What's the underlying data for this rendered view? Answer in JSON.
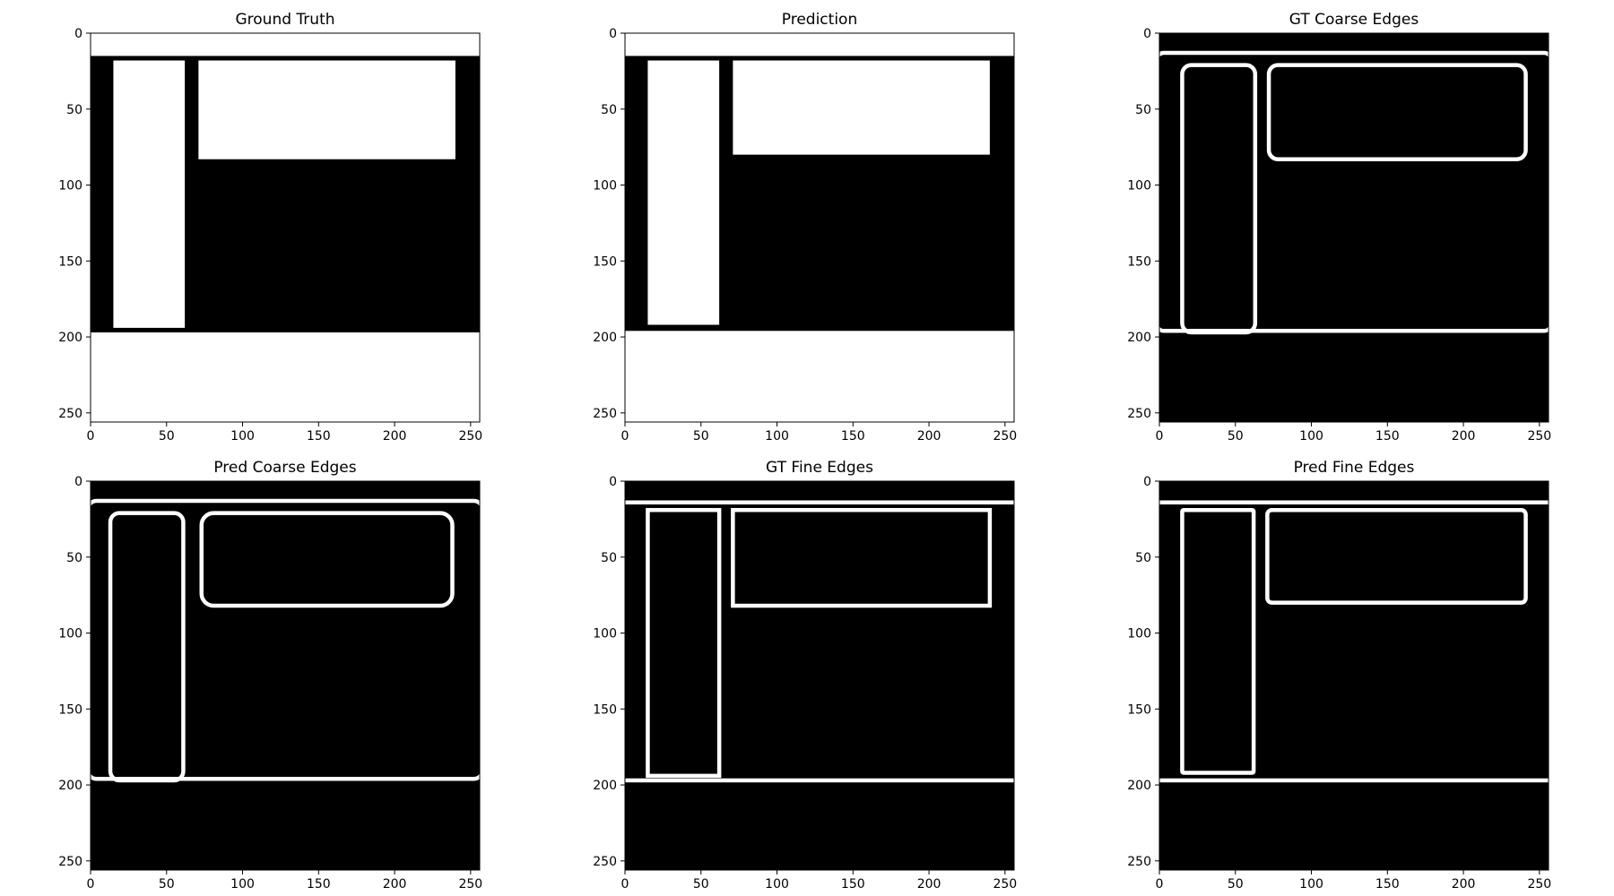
{
  "figure": {
    "background": "#ffffff",
    "image_foreground": "#ffffff",
    "image_background": "#000000"
  },
  "chart_data": [
    {
      "type": "heatmap",
      "title": "Ground Truth",
      "xlim": [
        0,
        256
      ],
      "ylim": [
        256,
        0
      ],
      "xticks": [
        0,
        50,
        100,
        150,
        200,
        250
      ],
      "yticks": [
        0,
        50,
        100,
        150,
        200,
        250
      ],
      "image": {
        "background": "#000000",
        "filled_regions": [
          {
            "x": [
              0,
              256
            ],
            "y": [
              0,
              15
            ]
          },
          {
            "x": [
              15,
              62
            ],
            "y": [
              18,
              194
            ]
          },
          {
            "x": [
              71,
              240
            ],
            "y": [
              18,
              83
            ]
          },
          {
            "x": [
              0,
              256
            ],
            "y": [
              197,
              256
            ]
          }
        ],
        "stroked_regions": []
      }
    },
    {
      "type": "heatmap",
      "title": "Prediction",
      "xlim": [
        0,
        256
      ],
      "ylim": [
        256,
        0
      ],
      "xticks": [
        0,
        50,
        100,
        150,
        200,
        250
      ],
      "yticks": [
        0,
        50,
        100,
        150,
        200,
        250
      ],
      "image": {
        "background": "#000000",
        "filled_regions": [
          {
            "x": [
              0,
              256
            ],
            "y": [
              0,
              15
            ]
          },
          {
            "x": [
              15,
              62
            ],
            "y": [
              18,
              192
            ]
          },
          {
            "x": [
              71,
              240
            ],
            "y": [
              18,
              80
            ]
          },
          {
            "x": [
              0,
              256
            ],
            "y": [
              196,
              256
            ]
          }
        ],
        "stroked_regions": []
      }
    },
    {
      "type": "heatmap",
      "title": "GT Coarse Edges",
      "xlim": [
        0,
        256
      ],
      "ylim": [
        256,
        0
      ],
      "xticks": [
        0,
        50,
        100,
        150,
        200,
        250
      ],
      "yticks": [
        0,
        50,
        100,
        150,
        200,
        250
      ],
      "image": {
        "background": "#000000",
        "filled_regions": [],
        "stroked_regions": [
          {
            "x": [
              15,
              63
            ],
            "y": [
              21,
              197
            ],
            "rx": 6
          },
          {
            "x": [
              72,
              241
            ],
            "y": [
              21,
              83
            ],
            "rx": 6
          },
          {
            "x": [
              -2,
              258
            ],
            "y": [
              13,
              196
            ],
            "rx": 5
          }
        ]
      }
    },
    {
      "type": "heatmap",
      "title": "Pred Coarse Edges",
      "xlim": [
        0,
        256
      ],
      "ylim": [
        256,
        0
      ],
      "xticks": [
        0,
        50,
        100,
        150,
        200,
        250
      ],
      "yticks": [
        0,
        50,
        100,
        150,
        200,
        250
      ],
      "image": {
        "background": "#000000",
        "filled_regions": [],
        "stroked_regions": [
          {
            "x": [
              13,
              61
            ],
            "y": [
              21,
              197
            ],
            "rx": 6
          },
          {
            "x": [
              73,
              238
            ],
            "y": [
              21,
              82
            ],
            "rx": 8
          },
          {
            "x": [
              -2,
              258
            ],
            "y": [
              13,
              196
            ],
            "rx": 6
          }
        ]
      }
    },
    {
      "type": "heatmap",
      "title": "GT Fine Edges",
      "xlim": [
        0,
        256
      ],
      "ylim": [
        256,
        0
      ],
      "xticks": [
        0,
        50,
        100,
        150,
        200,
        250
      ],
      "yticks": [
        0,
        50,
        100,
        150,
        200,
        250
      ],
      "image": {
        "background": "#000000",
        "filled_regions": [],
        "stroked_regions": [
          {
            "x": [
              -2,
              258
            ],
            "y": [
              14,
              197
            ],
            "rx": 0
          },
          {
            "x": [
              15,
              62
            ],
            "y": [
              19,
              194
            ],
            "rx": 0
          },
          {
            "x": [
              71,
              240
            ],
            "y": [
              19,
              82
            ],
            "rx": 0
          }
        ]
      }
    },
    {
      "type": "heatmap",
      "title": "Pred Fine Edges",
      "xlim": [
        0,
        256
      ],
      "ylim": [
        256,
        0
      ],
      "xticks": [
        0,
        50,
        100,
        150,
        200,
        250
      ],
      "yticks": [
        0,
        50,
        100,
        150,
        200,
        250
      ],
      "image": {
        "background": "#000000",
        "filled_regions": [],
        "stroked_regions": [
          {
            "x": [
              -2,
              258
            ],
            "y": [
              14,
              197
            ],
            "rx": 0
          },
          {
            "x": [
              15,
              62
            ],
            "y": [
              19,
              192
            ],
            "rx": 1
          },
          {
            "x": [
              71,
              241
            ],
            "y": [
              19,
              80
            ],
            "rx": 3
          }
        ]
      }
    }
  ]
}
